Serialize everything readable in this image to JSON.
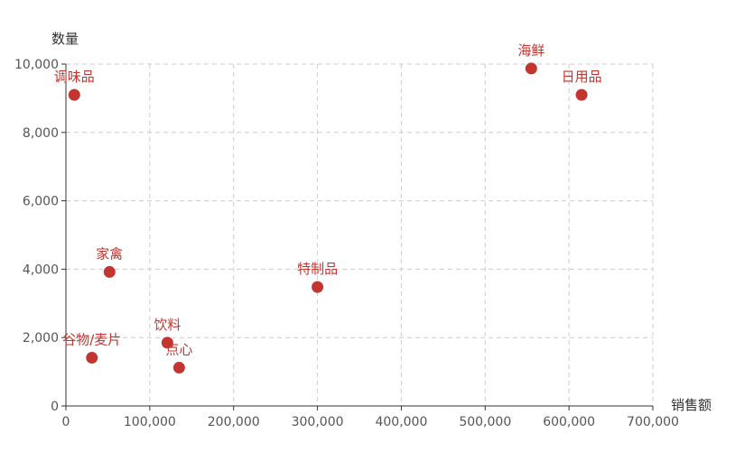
{
  "chart_data": {
    "type": "scatter",
    "xlabel": "销售额",
    "ylabel": "数量",
    "xlim": [
      0,
      700000
    ],
    "ylim": [
      0,
      10000
    ],
    "x_ticks": [
      0,
      100000,
      200000,
      300000,
      400000,
      500000,
      600000,
      700000
    ],
    "y_ticks": [
      0,
      2000,
      4000,
      6000,
      8000,
      10000
    ],
    "x_tick_labels": [
      "0",
      "100,000",
      "200,000",
      "300,000",
      "400,000",
      "500,000",
      "600,000",
      "700,000"
    ],
    "y_tick_labels": [
      "0",
      "2,000",
      "4,000",
      "6,000",
      "8,000",
      "10,000"
    ],
    "grid": true,
    "point_color": "#c23531",
    "label_color": "#c23531",
    "points": [
      {
        "label": "调味品",
        "x": 10000,
        "y": 9100
      },
      {
        "label": "海鲜",
        "x": 555000,
        "y": 9870
      },
      {
        "label": "日用品",
        "x": 615000,
        "y": 9100
      },
      {
        "label": "家禽",
        "x": 52000,
        "y": 3920
      },
      {
        "label": "特制品",
        "x": 300000,
        "y": 3480
      },
      {
        "label": "饮料",
        "x": 121000,
        "y": 1850
      },
      {
        "label": "点心",
        "x": 135000,
        "y": 1120
      },
      {
        "label": "谷物/麦片",
        "x": 31000,
        "y": 1410
      }
    ]
  }
}
